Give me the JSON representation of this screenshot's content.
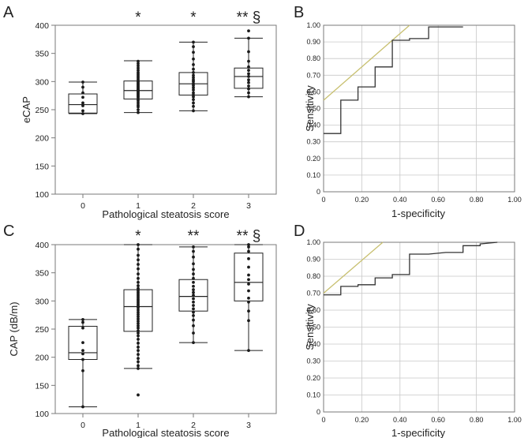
{
  "colors": {
    "axis": "#7a7a7a",
    "grid": "#c8c8c8",
    "box": "#222222",
    "dot": "#1a1a1a",
    "roc": "#333333",
    "reference": "#c8c070",
    "text": "#222222"
  },
  "chart_data": [
    {
      "id": "A",
      "panel_label": "A",
      "type": "box",
      "ylabel": "eCAP",
      "xlabel": "Pathological steatosis score",
      "categories": [
        "0",
        "1",
        "2",
        "3"
      ],
      "ylim": [
        100,
        400
      ],
      "yticks": [
        "100",
        "150",
        "200",
        "250",
        "300",
        "350",
        "400"
      ],
      "significance": [
        "",
        "*",
        "*",
        "** §"
      ],
      "boxes": [
        {
          "min": 243,
          "q1": 244,
          "median": 259,
          "q3": 278,
          "max": 299
        },
        {
          "min": 245,
          "q1": 269,
          "median": 284,
          "q3": 301,
          "max": 337
        },
        {
          "min": 248,
          "q1": 276,
          "median": 296,
          "q3": 316,
          "max": 370
        },
        {
          "min": 273,
          "q1": 288,
          "median": 309,
          "q3": 324,
          "max": 377
        }
      ],
      "points": [
        [
          243,
          248,
          257,
          262,
          272,
          280,
          290,
          299
        ],
        [
          245,
          250,
          255,
          258,
          262,
          266,
          269,
          272,
          274,
          276,
          278,
          280,
          282,
          284,
          285,
          287,
          289,
          291,
          293,
          295,
          297,
          299,
          301,
          304,
          307,
          310,
          313,
          316,
          320,
          324,
          328,
          332,
          336
        ],
        [
          248,
          256,
          262,
          268,
          273,
          276,
          280,
          285,
          289,
          293,
          296,
          300,
          303,
          307,
          311,
          316,
          322,
          330,
          340,
          352,
          362,
          370
        ],
        [
          273,
          280,
          287,
          292,
          298,
          303,
          309,
          314,
          320,
          326,
          336,
          353,
          377,
          390
        ]
      ]
    },
    {
      "id": "B",
      "panel_label": "B",
      "type": "roc",
      "xlabel": "1-specificity",
      "ylabel": "Sensitivity",
      "xlim": [
        0,
        1
      ],
      "ylim": [
        0,
        1
      ],
      "xticks": [
        "0",
        "0.20",
        "0.40",
        "0.60",
        "0.80",
        "1.00"
      ],
      "yticks": [
        "0",
        "0.10",
        "0.20",
        "0.30",
        "0.40",
        "0.50",
        "0.60",
        "0.70",
        "0.80",
        "0.90",
        "1.00"
      ],
      "roc": [
        [
          0,
          0.35
        ],
        [
          0.09,
          0.35
        ],
        [
          0.09,
          0.55
        ],
        [
          0.18,
          0.55
        ],
        [
          0.18,
          0.63
        ],
        [
          0.27,
          0.63
        ],
        [
          0.27,
          0.75
        ],
        [
          0.36,
          0.75
        ],
        [
          0.36,
          0.91
        ],
        [
          0.45,
          0.91
        ],
        [
          0.45,
          0.92
        ],
        [
          0.55,
          0.92
        ],
        [
          0.55,
          0.99
        ],
        [
          0.73,
          0.99
        ]
      ],
      "reference_line": [
        [
          0,
          0.55
        ],
        [
          0.45,
          1.0
        ]
      ]
    },
    {
      "id": "C",
      "panel_label": "C",
      "type": "box",
      "ylabel": "CAP (dB/m)",
      "xlabel": "Pathological steatosis score",
      "categories": [
        "0",
        "1",
        "2",
        "3"
      ],
      "ylim": [
        100,
        400
      ],
      "yticks": [
        "100",
        "150",
        "200",
        "250",
        "300",
        "350",
        "400"
      ],
      "significance": [
        "",
        "*",
        "**",
        "** §"
      ],
      "boxes": [
        {
          "min": 112,
          "q1": 196,
          "median": 208,
          "q3": 255,
          "max": 267
        },
        {
          "min": 180,
          "q1": 246,
          "median": 290,
          "q3": 320,
          "max": 400
        },
        {
          "min": 226,
          "q1": 282,
          "median": 308,
          "q3": 338,
          "max": 396
        },
        {
          "min": 212,
          "q1": 300,
          "median": 333,
          "q3": 385,
          "max": 400
        }
      ],
      "points": [
        [
          112,
          176,
          196,
          206,
          212,
          226,
          252,
          262,
          267
        ],
        [
          133,
          180,
          185,
          192,
          198,
          205,
          212,
          218,
          225,
          232,
          238,
          243,
          247,
          252,
          256,
          260,
          264,
          268,
          272,
          276,
          280,
          284,
          288,
          291,
          294,
          297,
          300,
          303,
          306,
          309,
          312,
          315,
          318,
          322,
          327,
          333,
          340,
          348,
          357,
          365,
          373,
          381,
          392,
          400
        ],
        [
          226,
          243,
          256,
          266,
          274,
          280,
          286,
          292,
          298,
          304,
          310,
          315,
          320,
          326,
          333,
          340,
          348,
          356,
          366,
          378,
          388,
          396
        ],
        [
          212,
          265,
          282,
          298,
          305,
          318,
          330,
          338,
          346,
          360,
          375,
          388,
          396,
          400
        ]
      ]
    },
    {
      "id": "D",
      "panel_label": "D",
      "type": "roc",
      "xlabel": "1-specificity",
      "ylabel": "Sensitivity",
      "xlim": [
        0,
        1
      ],
      "ylim": [
        0,
        1
      ],
      "xticks": [
        "0",
        "0.20",
        "0.40",
        "0.60",
        "0.80",
        "1.00"
      ],
      "yticks": [
        "0",
        "0.10",
        "0.20",
        "0.30",
        "0.40",
        "0.50",
        "0.60",
        "0.70",
        "0.80",
        "0.90",
        "1.00"
      ],
      "roc": [
        [
          0,
          0.69
        ],
        [
          0.09,
          0.69
        ],
        [
          0.09,
          0.74
        ],
        [
          0.18,
          0.74
        ],
        [
          0.18,
          0.75
        ],
        [
          0.27,
          0.75
        ],
        [
          0.27,
          0.79
        ],
        [
          0.36,
          0.79
        ],
        [
          0.36,
          0.81
        ],
        [
          0.45,
          0.81
        ],
        [
          0.45,
          0.93
        ],
        [
          0.55,
          0.93
        ],
        [
          0.64,
          0.94
        ],
        [
          0.73,
          0.94
        ],
        [
          0.73,
          0.98
        ],
        [
          0.82,
          0.98
        ],
        [
          0.82,
          0.99
        ],
        [
          0.91,
          1.0
        ]
      ],
      "reference_line": [
        [
          0,
          0.7
        ],
        [
          0.31,
          1.0
        ]
      ]
    }
  ]
}
